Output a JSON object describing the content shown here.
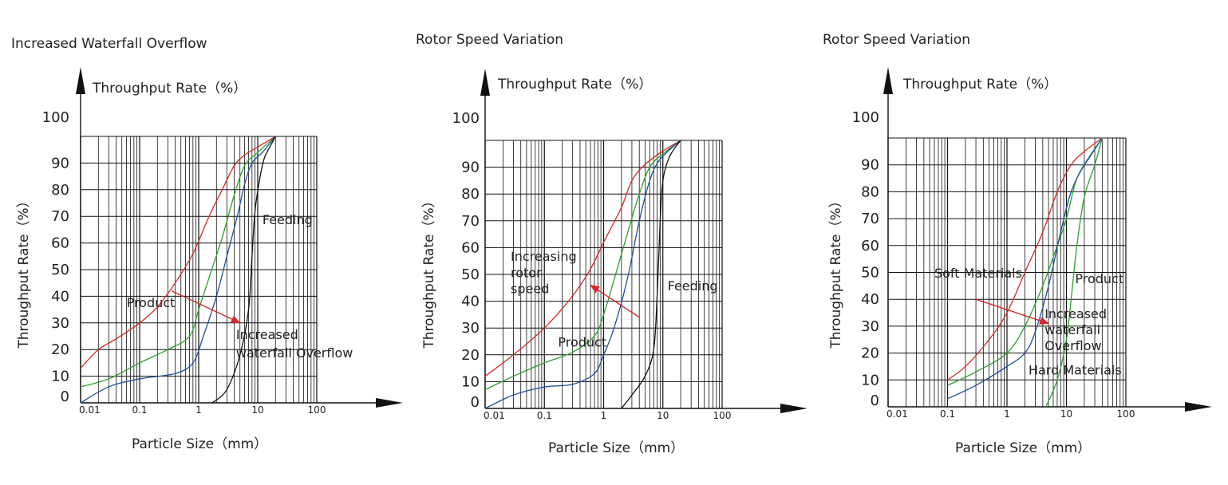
{
  "chart_data": [
    {
      "type": "line",
      "title": "Increased Waterfall Overflow",
      "ylabel_top": "Throughput Rate（%）",
      "ylabel_side": "Throughput Rate（%）",
      "xlabel": "Particle Size（mm）",
      "xscale": "log",
      "xlim": [
        0.01,
        100
      ],
      "ylim": [
        0,
        100
      ],
      "x_ticks": [
        "0.01",
        "0.1",
        "1",
        "10",
        "100"
      ],
      "y_ticks": [
        "0",
        "10",
        "20",
        "30",
        "40",
        "50",
        "60",
        "70",
        "80",
        "90",
        "100"
      ],
      "grid": true,
      "annotations": [
        {
          "text": "Feeding",
          "x": 12,
          "y": 67
        },
        {
          "text": "Product",
          "x": 0.06,
          "y": 36
        },
        {
          "text": "Increased",
          "x": 4.3,
          "y": 24
        },
        {
          "text": "waterfall Overflow",
          "x": 4.3,
          "y": 17
        }
      ],
      "arrows": [
        {
          "from": [
            0.35,
            42
          ],
          "to": [
            5,
            30
          ],
          "color": "#d62728"
        }
      ],
      "series": [
        {
          "color": "#d62728",
          "points": [
            [
              0.01,
              13
            ],
            [
              0.02,
              20
            ],
            [
              0.04,
              24
            ],
            [
              0.1,
              30
            ],
            [
              0.2,
              36
            ],
            [
              0.4,
              45
            ],
            [
              0.8,
              56
            ],
            [
              1.5,
              70
            ],
            [
              2.5,
              80
            ],
            [
              4,
              89
            ],
            [
              6,
              93
            ],
            [
              10,
              96
            ],
            [
              20,
              100
            ]
          ]
        },
        {
          "color": "#2ca02c",
          "points": [
            [
              0.01,
              6
            ],
            [
              0.03,
              9
            ],
            [
              0.1,
              15
            ],
            [
              0.3,
              20
            ],
            [
              0.7,
              25
            ],
            [
              1,
              35
            ],
            [
              1.5,
              47
            ],
            [
              2.5,
              62
            ],
            [
              4,
              78
            ],
            [
              6,
              89
            ],
            [
              10,
              94
            ],
            [
              20,
              100
            ]
          ]
        },
        {
          "color": "#1f4e9c",
          "points": [
            [
              0.01,
              0
            ],
            [
              0.03,
              6
            ],
            [
              0.1,
              9
            ],
            [
              0.4,
              11
            ],
            [
              0.8,
              15
            ],
            [
              1.2,
              25
            ],
            [
              2,
              40
            ],
            [
              3,
              55
            ],
            [
              4.5,
              70
            ],
            [
              6,
              82
            ],
            [
              8,
              90
            ],
            [
              12,
              94
            ],
            [
              20,
              100
            ]
          ]
        },
        {
          "color": "#111111",
          "points": [
            [
              1.7,
              0
            ],
            [
              3,
              5
            ],
            [
              5,
              18
            ],
            [
              7,
              35
            ],
            [
              8,
              55
            ],
            [
              9,
              72
            ],
            [
              11,
              85
            ],
            [
              13,
              92
            ],
            [
              16,
              96
            ],
            [
              20,
              100
            ]
          ]
        }
      ]
    },
    {
      "type": "line",
      "title": "Rotor Speed Variation",
      "ylabel_top": "Throughput Rate（%）",
      "ylabel_side": "Throughput Rate（%）",
      "xlabel": "Particle Size（mm）",
      "xscale": "log",
      "xlim": [
        0.01,
        100
      ],
      "ylim": [
        0,
        100
      ],
      "x_ticks": [
        "0.01",
        "0.1",
        "1",
        "10",
        "100"
      ],
      "y_ticks": [
        "0",
        "10",
        "20",
        "30",
        "40",
        "50",
        "60",
        "70",
        "80",
        "90",
        "100"
      ],
      "grid": true,
      "annotations": [
        {
          "text": "Increasing",
          "x": 0.027,
          "y": 55
        },
        {
          "text": "rotor",
          "x": 0.027,
          "y": 49
        },
        {
          "text": "speed",
          "x": 0.027,
          "y": 43
        },
        {
          "text": "Feeding",
          "x": 12,
          "y": 44
        },
        {
          "text": "Product",
          "x": 0.17,
          "y": 23
        }
      ],
      "arrows": [
        {
          "from": [
            4,
            34
          ],
          "to": [
            0.6,
            46
          ],
          "color": "#d62728"
        }
      ],
      "series": [
        {
          "color": "#d62728",
          "points": [
            [
              0.01,
              12
            ],
            [
              0.03,
              20
            ],
            [
              0.1,
              30
            ],
            [
              0.3,
              42
            ],
            [
              0.6,
              52
            ],
            [
              1,
              62
            ],
            [
              2,
              75
            ],
            [
              3,
              85
            ],
            [
              5,
              91
            ],
            [
              10,
              96
            ],
            [
              20,
              100
            ]
          ]
        },
        {
          "color": "#2ca02c",
          "points": [
            [
              0.01,
              7
            ],
            [
              0.03,
              12
            ],
            [
              0.1,
              17
            ],
            [
              0.3,
              21
            ],
            [
              0.7,
              27
            ],
            [
              1,
              35
            ],
            [
              1.5,
              48
            ],
            [
              2.5,
              65
            ],
            [
              4,
              80
            ],
            [
              6,
              90
            ],
            [
              10,
              95
            ],
            [
              20,
              100
            ]
          ]
        },
        {
          "color": "#1f4e9c",
          "points": [
            [
              0.01,
              0
            ],
            [
              0.03,
              5
            ],
            [
              0.1,
              8
            ],
            [
              0.3,
              9
            ],
            [
              0.7,
              13
            ],
            [
              1,
              20
            ],
            [
              1.5,
              30
            ],
            [
              2.5,
              48
            ],
            [
              4,
              70
            ],
            [
              6,
              85
            ],
            [
              9,
              93
            ],
            [
              20,
              100
            ]
          ]
        },
        {
          "color": "#111111",
          "points": [
            [
              2,
              0
            ],
            [
              3,
              5
            ],
            [
              5,
              12
            ],
            [
              7,
              22
            ],
            [
              8,
              42
            ],
            [
              9,
              70
            ],
            [
              10,
              85
            ],
            [
              13,
              94
            ],
            [
              20,
              100
            ]
          ]
        }
      ]
    },
    {
      "type": "line",
      "title": "Rotor Speed Variation",
      "ylabel_top": "Throughput Rate（%）",
      "ylabel_side": "Throughput Rate（%）",
      "xlabel": "Particle Size（mm）",
      "xscale": "log",
      "xlim": [
        0.01,
        100
      ],
      "ylim": [
        0,
        100
      ],
      "x_ticks": [
        "0.01",
        "0.1",
        "1",
        "10",
        "100"
      ],
      "y_ticks": [
        "0",
        "10",
        "20",
        "30",
        "40",
        "50",
        "60",
        "70",
        "80",
        "90",
        "100"
      ],
      "grid": true,
      "annotations": [
        {
          "text": "Soft Materials",
          "x": 0.06,
          "y": 48
        },
        {
          "text": "Product",
          "x": 14,
          "y": 46
        },
        {
          "text": "Increased",
          "x": 4.3,
          "y": 33
        },
        {
          "text": "waterfall",
          "x": 4.3,
          "y": 27
        },
        {
          "text": "Overflow",
          "x": 4.3,
          "y": 21
        },
        {
          "text": "Hard Materials",
          "x": 2.3,
          "y": 12
        }
      ],
      "arrows": [
        {
          "from": [
            0.3,
            40
          ],
          "to": [
            5,
            31
          ],
          "color": "#d62728"
        }
      ],
      "series": [
        {
          "color": "#d62728",
          "points": [
            [
              0.1,
              10
            ],
            [
              0.2,
              15
            ],
            [
              0.5,
              25
            ],
            [
              1,
              35
            ],
            [
              2,
              50
            ],
            [
              4,
              65
            ],
            [
              7,
              80
            ],
            [
              12,
              90
            ],
            [
              20,
              95
            ],
            [
              40,
              100
            ]
          ]
        },
        {
          "color": "#2ca02c",
          "points": [
            [
              0.1,
              8
            ],
            [
              0.3,
              13
            ],
            [
              1,
              20
            ],
            [
              2,
              30
            ],
            [
              4,
              45
            ],
            [
              7,
              60
            ],
            [
              10,
              70
            ],
            [
              15,
              85
            ],
            [
              25,
              93
            ],
            [
              40,
              100
            ]
          ]
        },
        {
          "color": "#1f4e9c",
          "points": [
            [
              0.1,
              3
            ],
            [
              0.3,
              8
            ],
            [
              1,
              15
            ],
            [
              2,
              20
            ],
            [
              3,
              28
            ],
            [
              5,
              45
            ],
            [
              8,
              65
            ],
            [
              12,
              80
            ],
            [
              20,
              90
            ],
            [
              40,
              100
            ]
          ]
        },
        {
          "color": "#2ca02c",
          "points": [
            [
              4.5,
              0
            ],
            [
              7,
              10
            ],
            [
              10,
              25
            ],
            [
              12,
              40
            ],
            [
              15,
              60
            ],
            [
              20,
              78
            ],
            [
              30,
              90
            ],
            [
              40,
              100
            ]
          ]
        }
      ]
    }
  ]
}
